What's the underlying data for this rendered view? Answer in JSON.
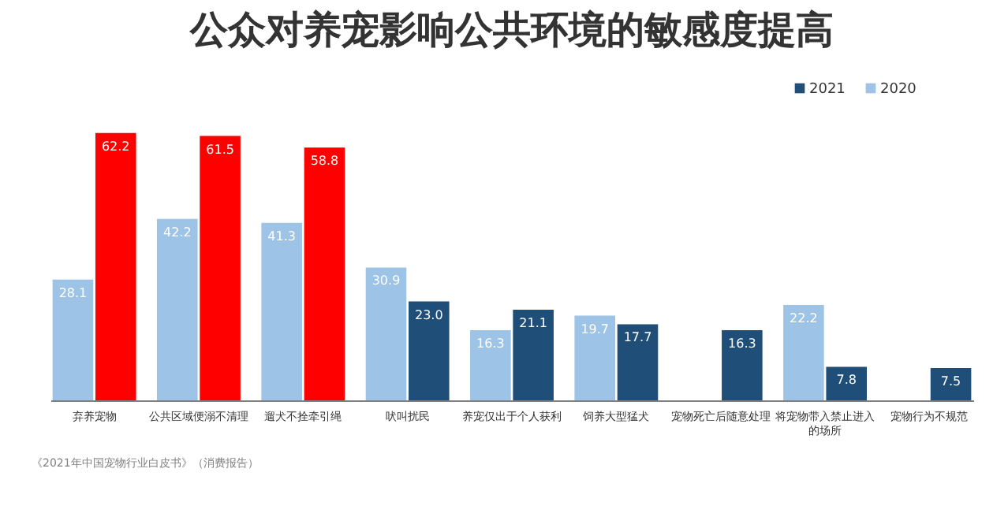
{
  "chart_data": {
    "type": "bar",
    "title": "公众对养宠影响公共环境的敏感度提高",
    "categories": [
      "弃养宠物",
      "公共区域便溺不清理",
      "遛犬不拴牵引绳",
      "吠叫扰民",
      "养宠仅出于个人获利",
      "饲养大型猛犬",
      "宠物死亡后随意处理",
      "将宠物带入禁止进入的场所",
      "宠物行为不规范"
    ],
    "series": [
      {
        "name": "2020",
        "color": "#9dc3e6",
        "values": [
          28.1,
          42.2,
          41.3,
          30.9,
          16.3,
          19.7,
          null,
          22.2,
          null
        ],
        "value_labels": [
          "28.1",
          "42.2",
          "41.3",
          "30.9",
          "16.3",
          "19.7",
          null,
          "22.2",
          null
        ]
      },
      {
        "name": "2021",
        "color": "#1f4e79",
        "colors": [
          "#ff0000",
          "#ff0000",
          "#ff0000",
          "#1f4e79",
          "#1f4e79",
          "#1f4e79",
          "#1f4e79",
          "#1f4e79",
          "#1f4e79"
        ],
        "values": [
          62.2,
          61.5,
          58.8,
          23.0,
          21.1,
          17.7,
          16.3,
          7.8,
          7.5
        ],
        "value_labels": [
          "62.2",
          "61.5",
          "58.8",
          "23.0",
          "21.1",
          "17.7",
          "16.3",
          "7.8",
          "7.5"
        ]
      }
    ],
    "legend": "top right",
    "annotations": [
      "《2021年中国宠物行业白皮书》（消费报告）"
    ]
  }
}
